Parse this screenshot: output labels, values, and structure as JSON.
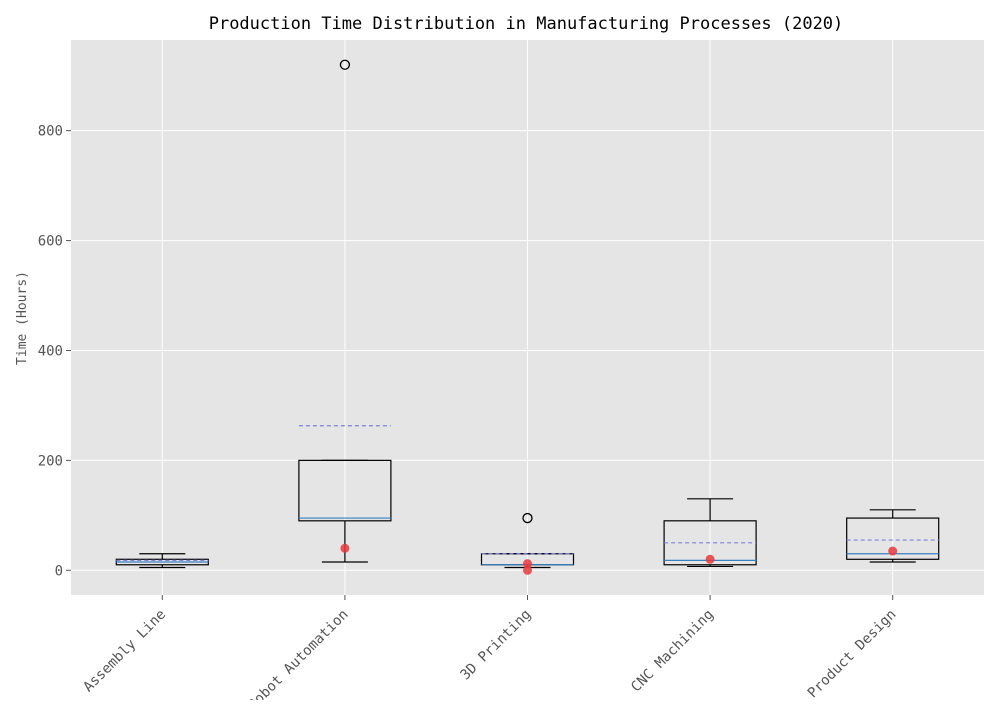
{
  "chart_data": {
    "type": "box",
    "title": "Production Time Distribution in Manufacturing Processes (2020)",
    "xlabel": "",
    "ylabel": "Time (Hours)",
    "ylim": [
      -45,
      965
    ],
    "yticks": [
      0,
      200,
      400,
      600,
      800
    ],
    "grid": true,
    "legend": "none",
    "categories": [
      "Assembly Line",
      "Robot Automation",
      "3D Printing",
      "CNC Machining",
      "Product Design"
    ],
    "boxes": [
      {
        "category": "Assembly Line",
        "whisker_low": 5,
        "q1": 10,
        "median": 15,
        "q3": 20,
        "whisker_high": 30,
        "mean": 18,
        "outliers": [],
        "highlighted": []
      },
      {
        "category": "Robot Automation",
        "whisker_low": 15,
        "q1": 90,
        "median": 95,
        "q3": 200,
        "whisker_high": 200,
        "mean": 263,
        "outliers": [
          920
        ],
        "highlighted": [
          40
        ]
      },
      {
        "category": "3D Printing",
        "whisker_low": 5,
        "q1": 10,
        "median": 10,
        "q3": 30,
        "whisker_high": 30,
        "mean": 30,
        "outliers": [
          95
        ],
        "highlighted": [
          12,
          0
        ]
      },
      {
        "category": "CNC Machining",
        "whisker_low": 7,
        "q1": 10,
        "median": 18,
        "q3": 90,
        "whisker_high": 130,
        "mean": 50,
        "outliers": [],
        "highlighted": [
          20
        ]
      },
      {
        "category": "Product Design",
        "whisker_low": 15,
        "q1": 20,
        "median": 30,
        "q3": 95,
        "whisker_high": 110,
        "mean": 55,
        "outliers": [],
        "highlighted": [
          35
        ]
      }
    ],
    "colors": {
      "background": "#e5e5e5",
      "grid": "#ffffff",
      "box": "#000000",
      "median": "#3a7fbf",
      "mean": "#8080e0",
      "highlight": "#e8383d",
      "text": "#555555",
      "title": "#000000"
    }
  }
}
